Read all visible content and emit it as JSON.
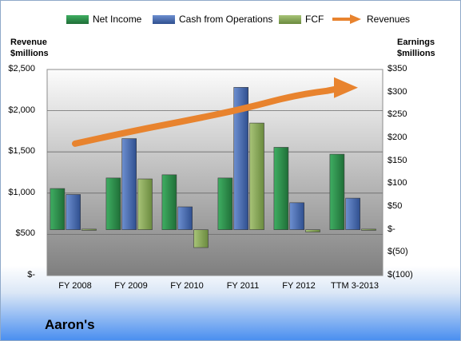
{
  "chart_data": {
    "type": "bar",
    "title": "Aaron's",
    "categories": [
      "FY 2008",
      "FY 2009",
      "FY 2010",
      "FY 2011",
      "FY 2012",
      "TTM 3-2013"
    ],
    "series": [
      {
        "name": "Net Income",
        "axis": "right",
        "color": "#2e8b4a",
        "values": [
          90,
          113,
          120,
          113,
          180,
          165
        ]
      },
      {
        "name": "Cash from Operations",
        "axis": "right",
        "color": "#4a6fb5",
        "values": [
          77,
          199,
          50,
          311,
          59,
          69
        ]
      },
      {
        "name": "FCF",
        "axis": "right",
        "color": "#8aaa58",
        "values": [
          0,
          111,
          -39,
          233,
          -5,
          0
        ]
      }
    ],
    "line_series": {
      "name": "Revenues",
      "axis": "left",
      "color": "#e8832e",
      "values": [
        1600,
        1750,
        1880,
        2020,
        2200,
        2280
      ]
    },
    "left_axis": {
      "title_line1": "Revenue",
      "title_line2": "$millions",
      "ylim": [
        0,
        2500
      ],
      "ticks": [
        "$-",
        "$500",
        "$1,000",
        "$1,500",
        "$2,000",
        "$2,500"
      ]
    },
    "right_axis": {
      "title_line1": "Earnings",
      "title_line2": "$millions",
      "ylim": [
        -100,
        350
      ],
      "ticks": [
        "$(100)",
        "$(50)",
        "$-",
        "$50",
        "$100",
        "$150",
        "$200",
        "$250",
        "$300",
        "$350"
      ]
    },
    "grid": true,
    "legend_position": "top"
  }
}
